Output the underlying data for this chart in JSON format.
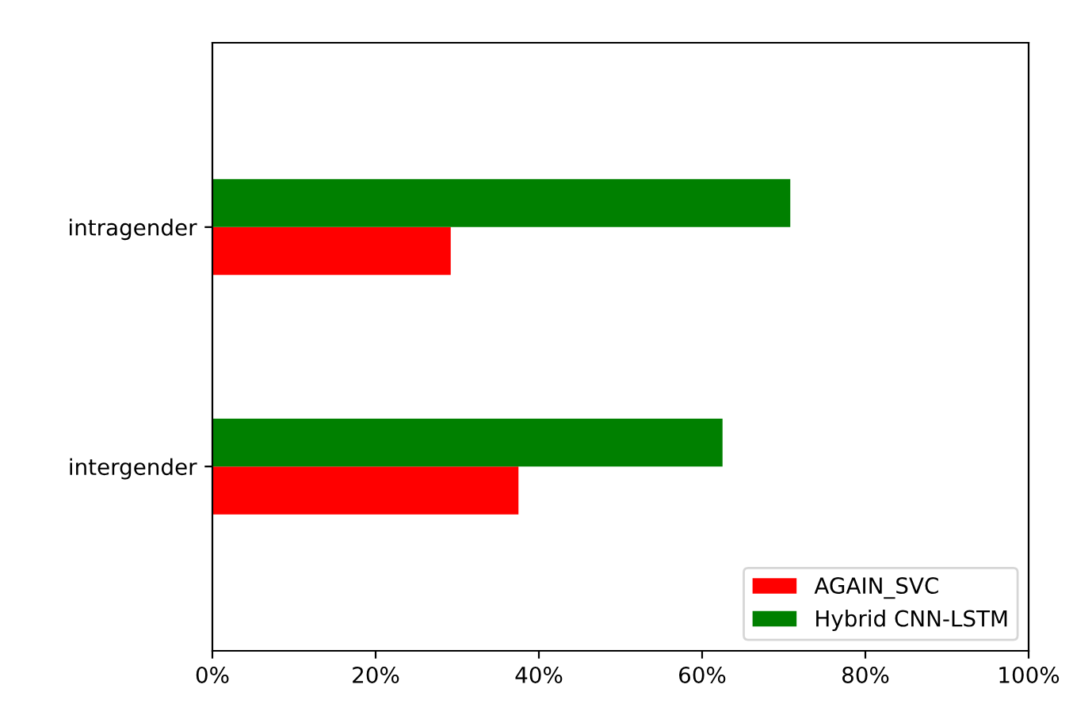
{
  "chart_data": {
    "type": "bar",
    "orientation": "horizontal",
    "categories": [
      "intragender",
      "intergender"
    ],
    "series": [
      {
        "name": "AGAIN_SVC",
        "color": "#ff0000",
        "values": [
          29.2,
          37.5
        ]
      },
      {
        "name": "Hybrid CNN-LSTM",
        "color": "#008000",
        "values": [
          70.8,
          62.5
        ]
      }
    ],
    "xlim": [
      0,
      100
    ],
    "xticks": [
      {
        "value": 0,
        "label": "0%"
      },
      {
        "value": 20,
        "label": "20%"
      },
      {
        "value": 40,
        "label": "40%"
      },
      {
        "value": 60,
        "label": "60%"
      },
      {
        "value": 80,
        "label": "80%"
      },
      {
        "value": 100,
        "label": "100%"
      }
    ],
    "legend": "bottom right",
    "grid": false
  }
}
